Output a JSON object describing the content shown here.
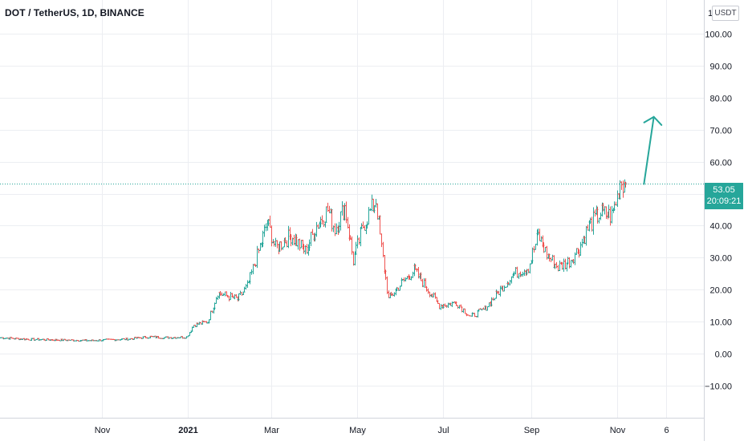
{
  "header": {
    "symbol": "DOT / TetherUS, 1D, BINANCE",
    "currency": "USDT",
    "axis_top_fragment": "1"
  },
  "last_price": {
    "value": "53.05",
    "countdown": "20:09:21",
    "tag_color": "#26a69a"
  },
  "colors": {
    "up": "#26a69a",
    "down": "#ef5350",
    "grid": "#eceef2",
    "axis_text": "#131722",
    "arrow": "#26a69a",
    "price_line": "#26a69a"
  },
  "chart_data": {
    "type": "ohlc",
    "title": "DOT / TetherUS, 1D, BINANCE",
    "ylim": [
      -20,
      110
    ],
    "yticks": [
      -10,
      0,
      10,
      20,
      30,
      40,
      50,
      60,
      70,
      80,
      90,
      100
    ],
    "ytick_labels": [
      "−10.00",
      "0.00",
      "10.00",
      "20.00",
      "30.00",
      "40.00",
      "50.00",
      "60.00",
      "70.00",
      "80.00",
      "90.00",
      "100.00"
    ],
    "x_tick_labels": [
      {
        "label": "Nov",
        "date": "2020-11-01",
        "bold": false
      },
      {
        "label": "2021",
        "date": "2021-01-01",
        "bold": true
      },
      {
        "label": "Mar",
        "date": "2021-03-01",
        "bold": false
      },
      {
        "label": "May",
        "date": "2021-05-01",
        "bold": false
      },
      {
        "label": "Jul",
        "date": "2021-07-01",
        "bold": false
      },
      {
        "label": "Sep",
        "date": "2021-09-01",
        "bold": false
      },
      {
        "label": "Nov",
        "date": "2021-11-01",
        "bold": false
      },
      {
        "label": "6",
        "date": "2021-12-06",
        "bold": false
      }
    ],
    "xlim": [
      "2020-08-21",
      "2022-01-02"
    ],
    "grid": true,
    "price_anchors": [
      [
        "2020-08-21",
        5.0
      ],
      [
        "2020-09-10",
        4.5
      ],
      [
        "2020-10-01",
        4.3
      ],
      [
        "2020-10-25",
        4.1
      ],
      [
        "2020-11-20",
        4.6
      ],
      [
        "2020-12-05",
        5.3
      ],
      [
        "2020-12-15",
        5.0
      ],
      [
        "2020-12-31",
        5.2
      ],
      [
        "2021-01-05",
        9.0
      ],
      [
        "2021-01-15",
        10.0
      ],
      [
        "2021-01-22",
        19.0
      ],
      [
        "2021-02-05",
        17.0
      ],
      [
        "2021-02-12",
        21.0
      ],
      [
        "2021-02-20",
        32.0
      ],
      [
        "2021-02-26",
        41.0
      ],
      [
        "2021-03-04",
        33.0
      ],
      [
        "2021-03-15",
        37.0
      ],
      [
        "2021-03-25",
        32.0
      ],
      [
        "2021-04-02",
        40.0
      ],
      [
        "2021-04-10",
        45.0
      ],
      [
        "2021-04-15",
        39.0
      ],
      [
        "2021-04-22",
        46.0
      ],
      [
        "2021-04-28",
        29.0
      ],
      [
        "2021-05-05",
        40.0
      ],
      [
        "2021-05-14",
        48.0
      ],
      [
        "2021-05-18",
        33.0
      ],
      [
        "2021-05-23",
        17.0
      ],
      [
        "2021-06-01",
        22.0
      ],
      [
        "2021-06-10",
        26.0
      ],
      [
        "2021-06-20",
        20.0
      ],
      [
        "2021-06-28",
        15.0
      ],
      [
        "2021-07-10",
        16.0
      ],
      [
        "2021-07-20",
        11.5
      ],
      [
        "2021-07-30",
        14.0
      ],
      [
        "2021-08-10",
        20.0
      ],
      [
        "2021-08-20",
        25.0
      ],
      [
        "2021-08-30",
        27.0
      ],
      [
        "2021-09-06",
        37.0
      ],
      [
        "2021-09-12",
        31.0
      ],
      [
        "2021-09-20",
        27.0
      ],
      [
        "2021-09-28",
        29.0
      ],
      [
        "2021-10-05",
        33.0
      ],
      [
        "2021-10-12",
        40.0
      ],
      [
        "2021-10-20",
        44.0
      ],
      [
        "2021-10-28",
        43.0
      ],
      [
        "2021-11-01",
        49.0
      ],
      [
        "2021-11-03",
        54.0
      ],
      [
        "2021-11-07",
        53.05
      ]
    ],
    "last_close": 53.05,
    "annotations": [
      {
        "type": "arrow",
        "from": [
          "2021-11-20",
          53.0
        ],
        "to": [
          "2021-11-27",
          74.0
        ],
        "color": "#26a69a"
      }
    ]
  }
}
